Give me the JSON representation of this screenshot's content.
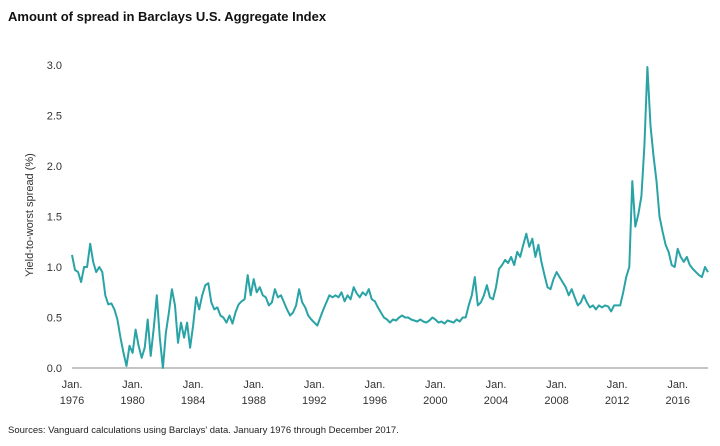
{
  "title": "Amount of spread in Barclays U.S. Aggregate Index",
  "source": "Sources: Vanguard calculations using Barclays' data. January 1976 through December 2017.",
  "colors": {
    "line": "#2aa3a6",
    "axis": "#888888",
    "text": "#333333"
  },
  "chart_data": {
    "type": "line",
    "title": "Amount of spread in Barclays U.S. Aggregate Index",
    "xlabel": "",
    "ylabel": "Yield-to-worst spread (%)",
    "xlim": [
      1976.0,
      2018.0
    ],
    "ylim": [
      0.0,
      3.0
    ],
    "grid": false,
    "legend": "none",
    "yticks": [
      "0.0",
      "0.5",
      "1.0",
      "1.5",
      "2.0",
      "2.5",
      "3.0"
    ],
    "xticks": [
      {
        "month": "Jan.",
        "year": "1976",
        "value": 1976
      },
      {
        "month": "Jan.",
        "year": "1980",
        "value": 1980
      },
      {
        "month": "Jan.",
        "year": "1984",
        "value": 1984
      },
      {
        "month": "Jan.",
        "year": "1988",
        "value": 1988
      },
      {
        "month": "Jan.",
        "year": "1992",
        "value": 1992
      },
      {
        "month": "Jan.",
        "year": "1996",
        "value": 1996
      },
      {
        "month": "Jan.",
        "year": "2000",
        "value": 2000
      },
      {
        "month": "Jan.",
        "year": "2004",
        "value": 2004
      },
      {
        "month": "Jan.",
        "year": "2008",
        "value": 2008
      },
      {
        "month": "Jan.",
        "year": "2012",
        "value": 2012
      },
      {
        "month": "Jan.",
        "year": "2016",
        "value": 2016
      }
    ],
    "series": [
      {
        "values": [
          [
            1976.0,
            1.12
          ],
          [
            1976.2,
            0.97
          ],
          [
            1976.4,
            0.95
          ],
          [
            1976.6,
            0.85
          ],
          [
            1976.8,
            1.0
          ],
          [
            1977.0,
            1.0
          ],
          [
            1977.2,
            1.23
          ],
          [
            1977.4,
            1.05
          ],
          [
            1977.6,
            0.95
          ],
          [
            1977.8,
            1.0
          ],
          [
            1978.0,
            0.95
          ],
          [
            1978.2,
            0.72
          ],
          [
            1978.4,
            0.63
          ],
          [
            1978.6,
            0.64
          ],
          [
            1978.8,
            0.58
          ],
          [
            1979.0,
            0.48
          ],
          [
            1979.2,
            0.3
          ],
          [
            1979.4,
            0.15
          ],
          [
            1979.6,
            0.02
          ],
          [
            1979.8,
            0.22
          ],
          [
            1980.0,
            0.15
          ],
          [
            1980.2,
            0.38
          ],
          [
            1980.4,
            0.22
          ],
          [
            1980.6,
            0.1
          ],
          [
            1980.8,
            0.2
          ],
          [
            1981.0,
            0.48
          ],
          [
            1981.2,
            0.12
          ],
          [
            1981.4,
            0.4
          ],
          [
            1981.6,
            0.72
          ],
          [
            1981.8,
            0.3
          ],
          [
            1982.0,
            0.0
          ],
          [
            1982.2,
            0.35
          ],
          [
            1982.4,
            0.55
          ],
          [
            1982.6,
            0.78
          ],
          [
            1982.8,
            0.62
          ],
          [
            1983.0,
            0.25
          ],
          [
            1983.2,
            0.45
          ],
          [
            1983.4,
            0.3
          ],
          [
            1983.6,
            0.45
          ],
          [
            1983.8,
            0.2
          ],
          [
            1984.0,
            0.42
          ],
          [
            1984.2,
            0.7
          ],
          [
            1984.4,
            0.58
          ],
          [
            1984.6,
            0.72
          ],
          [
            1984.8,
            0.82
          ],
          [
            1985.0,
            0.84
          ],
          [
            1985.2,
            0.65
          ],
          [
            1985.4,
            0.58
          ],
          [
            1985.6,
            0.6
          ],
          [
            1985.8,
            0.52
          ],
          [
            1986.0,
            0.5
          ],
          [
            1986.2,
            0.45
          ],
          [
            1986.4,
            0.52
          ],
          [
            1986.6,
            0.44
          ],
          [
            1986.8,
            0.55
          ],
          [
            1987.0,
            0.63
          ],
          [
            1987.2,
            0.66
          ],
          [
            1987.4,
            0.68
          ],
          [
            1987.6,
            0.92
          ],
          [
            1987.8,
            0.72
          ],
          [
            1988.0,
            0.88
          ],
          [
            1988.2,
            0.75
          ],
          [
            1988.4,
            0.8
          ],
          [
            1988.6,
            0.72
          ],
          [
            1988.8,
            0.7
          ],
          [
            1989.0,
            0.62
          ],
          [
            1989.2,
            0.65
          ],
          [
            1989.4,
            0.78
          ],
          [
            1989.6,
            0.7
          ],
          [
            1989.8,
            0.72
          ],
          [
            1990.0,
            0.65
          ],
          [
            1990.2,
            0.58
          ],
          [
            1990.4,
            0.52
          ],
          [
            1990.6,
            0.55
          ],
          [
            1990.8,
            0.62
          ],
          [
            1991.0,
            0.78
          ],
          [
            1991.2,
            0.65
          ],
          [
            1991.4,
            0.6
          ],
          [
            1991.6,
            0.52
          ],
          [
            1991.8,
            0.48
          ],
          [
            1992.0,
            0.45
          ],
          [
            1992.2,
            0.42
          ],
          [
            1992.4,
            0.5
          ],
          [
            1992.6,
            0.58
          ],
          [
            1992.8,
            0.65
          ],
          [
            1993.0,
            0.72
          ],
          [
            1993.2,
            0.7
          ],
          [
            1993.4,
            0.72
          ],
          [
            1993.6,
            0.7
          ],
          [
            1993.8,
            0.75
          ],
          [
            1994.0,
            0.66
          ],
          [
            1994.2,
            0.72
          ],
          [
            1994.4,
            0.68
          ],
          [
            1994.6,
            0.8
          ],
          [
            1994.8,
            0.74
          ],
          [
            1995.0,
            0.7
          ],
          [
            1995.2,
            0.75
          ],
          [
            1995.4,
            0.72
          ],
          [
            1995.6,
            0.78
          ],
          [
            1995.8,
            0.68
          ],
          [
            1996.0,
            0.66
          ],
          [
            1996.2,
            0.6
          ],
          [
            1996.4,
            0.55
          ],
          [
            1996.6,
            0.5
          ],
          [
            1996.8,
            0.48
          ],
          [
            1997.0,
            0.45
          ],
          [
            1997.2,
            0.48
          ],
          [
            1997.4,
            0.47
          ],
          [
            1997.6,
            0.5
          ],
          [
            1997.8,
            0.52
          ],
          [
            1998.0,
            0.5
          ],
          [
            1998.2,
            0.5
          ],
          [
            1998.4,
            0.48
          ],
          [
            1998.6,
            0.47
          ],
          [
            1998.8,
            0.46
          ],
          [
            1999.0,
            0.48
          ],
          [
            1999.2,
            0.46
          ],
          [
            1999.4,
            0.45
          ],
          [
            1999.6,
            0.47
          ],
          [
            1999.8,
            0.5
          ],
          [
            2000.0,
            0.48
          ],
          [
            2000.2,
            0.45
          ],
          [
            2000.4,
            0.46
          ],
          [
            2000.6,
            0.44
          ],
          [
            2000.8,
            0.47
          ],
          [
            2001.0,
            0.46
          ],
          [
            2001.2,
            0.45
          ],
          [
            2001.4,
            0.48
          ],
          [
            2001.6,
            0.46
          ],
          [
            2001.8,
            0.5
          ],
          [
            2002.0,
            0.5
          ],
          [
            2002.2,
            0.62
          ],
          [
            2002.4,
            0.72
          ],
          [
            2002.6,
            0.9
          ],
          [
            2002.8,
            0.62
          ],
          [
            2003.0,
            0.65
          ],
          [
            2003.2,
            0.72
          ],
          [
            2003.4,
            0.82
          ],
          [
            2003.6,
            0.7
          ],
          [
            2003.8,
            0.68
          ],
          [
            2004.0,
            0.8
          ],
          [
            2004.2,
            0.98
          ],
          [
            2004.4,
            1.02
          ],
          [
            2004.6,
            1.07
          ],
          [
            2004.8,
            1.04
          ],
          [
            2005.0,
            1.1
          ],
          [
            2005.2,
            1.02
          ],
          [
            2005.4,
            1.15
          ],
          [
            2005.6,
            1.1
          ],
          [
            2005.8,
            1.22
          ],
          [
            2006.0,
            1.33
          ],
          [
            2006.2,
            1.2
          ],
          [
            2006.4,
            1.28
          ],
          [
            2006.6,
            1.1
          ],
          [
            2006.8,
            1.22
          ],
          [
            2007.0,
            1.05
          ],
          [
            2007.2,
            0.92
          ],
          [
            2007.4,
            0.8
          ],
          [
            2007.6,
            0.78
          ],
          [
            2007.8,
            0.88
          ],
          [
            2008.0,
            0.95
          ],
          [
            2008.2,
            0.9
          ],
          [
            2008.4,
            0.85
          ],
          [
            2008.6,
            0.8
          ],
          [
            2008.8,
            0.72
          ],
          [
            2009.0,
            0.78
          ],
          [
            2009.2,
            0.7
          ],
          [
            2009.4,
            0.62
          ],
          [
            2009.6,
            0.65
          ],
          [
            2009.8,
            0.72
          ],
          [
            2010.0,
            0.65
          ],
          [
            2010.2,
            0.6
          ],
          [
            2010.4,
            0.62
          ],
          [
            2010.6,
            0.58
          ],
          [
            2010.8,
            0.62
          ],
          [
            2011.0,
            0.6
          ],
          [
            2011.2,
            0.62
          ],
          [
            2011.4,
            0.61
          ],
          [
            2011.6,
            0.56
          ],
          [
            2011.8,
            0.62
          ],
          [
            2012.0,
            0.62
          ],
          [
            2012.2,
            0.62
          ],
          [
            2012.4,
            0.75
          ],
          [
            2012.6,
            0.9
          ],
          [
            2012.8,
            1.0
          ],
          [
            2013.0,
            1.85
          ],
          [
            2013.2,
            1.4
          ],
          [
            2013.4,
            1.52
          ],
          [
            2013.6,
            1.7
          ],
          [
            2013.8,
            2.2
          ],
          [
            2014.0,
            2.98
          ],
          [
            2014.2,
            2.4
          ],
          [
            2014.4,
            2.1
          ],
          [
            2014.6,
            1.85
          ],
          [
            2014.8,
            1.5
          ],
          [
            2015.0,
            1.35
          ],
          [
            2015.2,
            1.22
          ],
          [
            2015.4,
            1.15
          ],
          [
            2015.6,
            1.02
          ],
          [
            2015.8,
            1.0
          ],
          [
            2016.0,
            1.18
          ],
          [
            2016.2,
            1.1
          ],
          [
            2016.4,
            1.05
          ],
          [
            2016.6,
            1.1
          ],
          [
            2016.8,
            1.02
          ],
          [
            2017.0,
            0.98
          ],
          [
            2017.2,
            0.95
          ],
          [
            2017.4,
            0.92
          ],
          [
            2017.6,
            0.9
          ],
          [
            2017.8,
            1.0
          ],
          [
            2018.0,
            0.95
          ]
        ]
      }
    ]
  }
}
